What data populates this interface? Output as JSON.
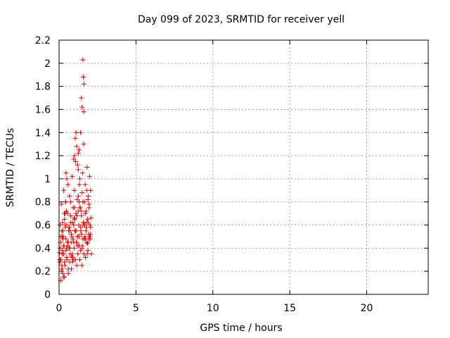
{
  "chart_data": {
    "type": "scatter",
    "title": "Day 099 of 2023, SRMTID for receiver yell",
    "xlabel": "GPS time / hours",
    "ylabel": "SRMTID / TECUs",
    "xlim": [
      0,
      24
    ],
    "ylim": [
      0,
      2.2
    ],
    "xticks": [
      0,
      5,
      10,
      15,
      20
    ],
    "xtick_labels": [
      "0",
      "5",
      "10",
      "15",
      "20"
    ],
    "yticks": [
      0,
      0.2,
      0.4,
      0.6,
      0.8,
      1,
      1.2,
      1.4,
      1.6,
      1.8,
      2,
      2.2
    ],
    "ytick_labels": [
      "0",
      "0.2",
      "0.4",
      "0.6",
      "0.8",
      "1",
      "1.2",
      "1.4",
      "1.6",
      "1.8",
      "2",
      "2.2"
    ],
    "grid": true,
    "marker": "+",
    "color": "#e00000",
    "series": [
      {
        "name": "SRMTID",
        "x": [
          0.02,
          0.05,
          0.08,
          0.1,
          0.12,
          0.15,
          0.18,
          0.2,
          0.22,
          0.25,
          0.28,
          0.3,
          0.32,
          0.35,
          0.38,
          0.4,
          0.42,
          0.45,
          0.48,
          0.5,
          0.52,
          0.55,
          0.58,
          0.6,
          0.62,
          0.65,
          0.68,
          0.7,
          0.72,
          0.75,
          0.78,
          0.8,
          0.82,
          0.85,
          0.88,
          0.9,
          0.92,
          0.95,
          0.98,
          1.0,
          1.02,
          1.05,
          1.08,
          1.1,
          1.12,
          1.15,
          1.18,
          1.2,
          1.22,
          1.25,
          1.28,
          1.3,
          1.32,
          1.35,
          1.38,
          1.4,
          1.42,
          1.45,
          1.48,
          1.5,
          1.52,
          1.55,
          1.58,
          1.6,
          1.62,
          1.65,
          1.68,
          1.7,
          1.72,
          1.75,
          1.78,
          1.8,
          1.82,
          1.85,
          1.88,
          1.9,
          1.92,
          1.95,
          1.98,
          2.0,
          2.02,
          2.05,
          2.08,
          2.1,
          0.05,
          0.1,
          0.15,
          0.2,
          0.25,
          0.3,
          0.35,
          0.4,
          0.45,
          0.5,
          0.55,
          0.6,
          0.65,
          0.7,
          0.75,
          0.8,
          0.85,
          0.9,
          0.95,
          1.0,
          1.05,
          1.1,
          1.15,
          1.2,
          1.25,
          1.3,
          1.35,
          1.4,
          1.45,
          1.5,
          1.55,
          1.6,
          1.65,
          1.7,
          1.75,
          1.8,
          1.85,
          1.9,
          1.95,
          2.0,
          2.05,
          0.12,
          0.28,
          0.44,
          0.6,
          0.76,
          0.92,
          1.08,
          1.24,
          1.4,
          1.56,
          1.72,
          1.88,
          2.04,
          0.18,
          0.34,
          0.5,
          0.66,
          0.82,
          0.98,
          1.14,
          1.3,
          1.46,
          1.62,
          1.78,
          1.94,
          0.07,
          0.23,
          0.39,
          0.55,
          0.71,
          0.87,
          1.03,
          1.19,
          1.35,
          1.51,
          1.67,
          1.83,
          1.99,
          1.55,
          1.58,
          1.62,
          1.5,
          1.45,
          1.6,
          1.1,
          1.05,
          1.15,
          1.0,
          0.95,
          1.2,
          1.25,
          1.3,
          0.5,
          0.45,
          0.3,
          0.35,
          0.25,
          0.2
        ],
        "y": [
          0.36,
          0.28,
          0.4,
          0.45,
          0.3,
          0.78,
          0.55,
          0.5,
          0.62,
          0.48,
          0.15,
          0.35,
          0.42,
          0.65,
          0.25,
          0.58,
          0.8,
          0.38,
          0.72,
          0.6,
          0.3,
          0.45,
          0.95,
          0.18,
          0.55,
          0.4,
          0.85,
          0.28,
          0.35,
          0.68,
          0.45,
          0.22,
          0.5,
          1.02,
          0.32,
          0.48,
          0.75,
          0.6,
          0.4,
          0.9,
          0.55,
          0.3,
          1.15,
          0.7,
          0.45,
          0.25,
          0.82,
          0.5,
          0.35,
          1.22,
          0.6,
          0.42,
          0.95,
          0.3,
          0.75,
          1.4,
          0.55,
          0.68,
          0.25,
          0.88,
          1.05,
          0.48,
          0.62,
          1.3,
          0.35,
          0.8,
          0.5,
          0.95,
          0.32,
          0.72,
          0.58,
          0.45,
          1.1,
          0.65,
          0.38,
          0.85,
          0.52,
          0.75,
          1.02,
          0.6,
          0.48,
          0.9,
          0.66,
          0.35,
          0.3,
          0.5,
          0.2,
          0.35,
          0.55,
          0.42,
          0.28,
          0.6,
          0.48,
          0.32,
          0.7,
          0.22,
          0.58,
          0.4,
          0.8,
          0.52,
          0.35,
          0.62,
          0.45,
          0.75,
          0.3,
          0.55,
          0.68,
          0.42,
          0.85,
          0.5,
          1.0,
          0.58,
          0.72,
          0.4,
          0.8,
          0.62,
          0.48,
          0.7,
          0.55,
          0.9,
          0.44,
          0.62,
          0.78,
          0.5,
          0.58,
          0.12,
          0.5,
          0.8,
          0.45,
          0.62,
          0.3,
          0.55,
          0.72,
          0.38,
          0.6,
          0.48,
          0.82,
          0.52,
          0.25,
          0.7,
          0.4,
          0.58,
          0.33,
          0.66,
          0.45,
          0.8,
          0.52,
          0.35,
          0.62,
          0.48,
          0.6,
          0.38,
          0.7,
          0.42,
          0.55,
          0.28,
          0.65,
          0.5,
          0.75,
          0.42,
          0.6,
          0.35,
          0.5,
          2.03,
          1.88,
          1.82,
          1.62,
          1.7,
          1.58,
          1.4,
          1.35,
          1.28,
          1.2,
          1.17,
          1.12,
          1.08,
          1.25,
          1.0,
          1.05,
          0.9,
          0.15,
          0.18,
          0.22
        ]
      }
    ]
  }
}
